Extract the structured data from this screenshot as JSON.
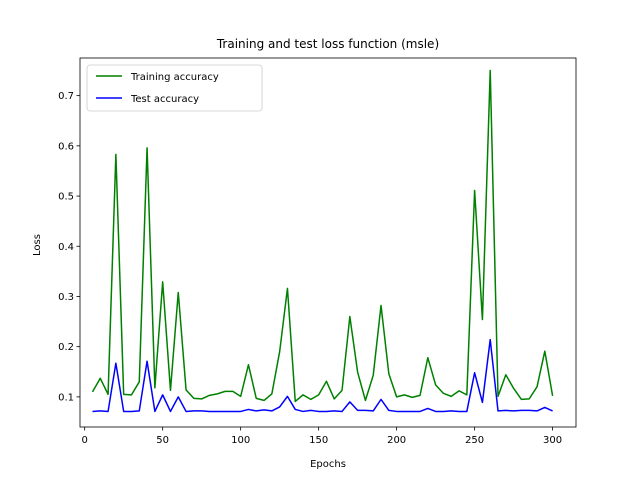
{
  "chart_data": {
    "type": "line",
    "title": "Training and test loss function (msle)",
    "xlabel": "Epochs",
    "ylabel": "Loss",
    "xlim": [
      -3,
      315
    ],
    "ylim": [
      0.04,
      0.775
    ],
    "xticks": [
      0,
      50,
      100,
      150,
      200,
      250,
      300
    ],
    "yticks": [
      0.1,
      0.2,
      0.3,
      0.4,
      0.5,
      0.6,
      0.7
    ],
    "ytick_labels": [
      "0.1",
      "0.2",
      "0.3",
      "0.4",
      "0.5",
      "0.6",
      "0.7"
    ],
    "grid": false,
    "legend_position": "upper-left",
    "x": [
      5,
      10,
      15,
      20,
      25,
      30,
      35,
      40,
      45,
      50,
      55,
      60,
      65,
      70,
      75,
      80,
      85,
      90,
      95,
      100,
      105,
      110,
      115,
      120,
      125,
      130,
      135,
      140,
      145,
      150,
      155,
      160,
      165,
      170,
      175,
      180,
      185,
      190,
      195,
      200,
      205,
      210,
      215,
      220,
      225,
      230,
      235,
      240,
      245,
      250,
      255,
      260,
      265,
      270,
      275,
      280,
      285,
      290,
      295,
      300
    ],
    "series": [
      {
        "name": "Training accuracy",
        "color": "#008000",
        "values": [
          0.11,
          0.137,
          0.105,
          0.583,
          0.105,
          0.104,
          0.13,
          0.596,
          0.118,
          0.329,
          0.113,
          0.308,
          0.114,
          0.097,
          0.096,
          0.103,
          0.106,
          0.111,
          0.111,
          0.101,
          0.164,
          0.097,
          0.093,
          0.106,
          0.19,
          0.316,
          0.091,
          0.104,
          0.095,
          0.104,
          0.131,
          0.096,
          0.113,
          0.26,
          0.149,
          0.093,
          0.143,
          0.282,
          0.146,
          0.1,
          0.104,
          0.099,
          0.103,
          0.178,
          0.124,
          0.107,
          0.101,
          0.112,
          0.104,
          0.511,
          0.254,
          0.75,
          0.101,
          0.144,
          0.117,
          0.095,
          0.096,
          0.12,
          0.191,
          0.102
        ]
      },
      {
        "name": "Test accuracy",
        "color": "#0000ff",
        "values": [
          0.071,
          0.072,
          0.071,
          0.167,
          0.071,
          0.071,
          0.072,
          0.171,
          0.071,
          0.104,
          0.071,
          0.1,
          0.071,
          0.072,
          0.072,
          0.071,
          0.071,
          0.071,
          0.071,
          0.071,
          0.075,
          0.072,
          0.074,
          0.072,
          0.08,
          0.101,
          0.075,
          0.071,
          0.073,
          0.071,
          0.071,
          0.072,
          0.071,
          0.09,
          0.073,
          0.073,
          0.072,
          0.095,
          0.073,
          0.071,
          0.071,
          0.071,
          0.071,
          0.077,
          0.071,
          0.071,
          0.072,
          0.071,
          0.071,
          0.148,
          0.089,
          0.214,
          0.072,
          0.073,
          0.072,
          0.073,
          0.073,
          0.072,
          0.079,
          0.072
        ]
      }
    ]
  }
}
